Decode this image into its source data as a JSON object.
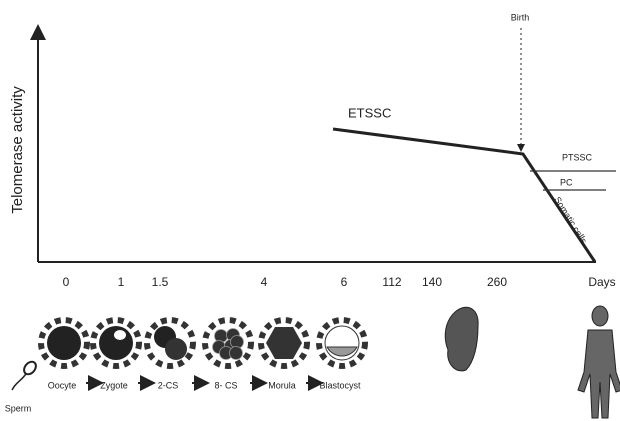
{
  "figure": {
    "y_axis_label": "Telomerase activity",
    "x_labels": [
      "0",
      "1",
      "1.5",
      "4",
      "6",
      "112",
      "140",
      "260"
    ],
    "x_unit": "Days",
    "birth": "Birth",
    "curves": {
      "etssc": "ETSSC",
      "ptssc": "PTSSC",
      "pc": "PC",
      "somatic": "Somatic cells"
    },
    "stages": [
      "Oocyte",
      "Zygote",
      "2-CS",
      "8- CS",
      "Morula",
      "Blastocyst"
    ],
    "sperm": "Sperm"
  }
}
